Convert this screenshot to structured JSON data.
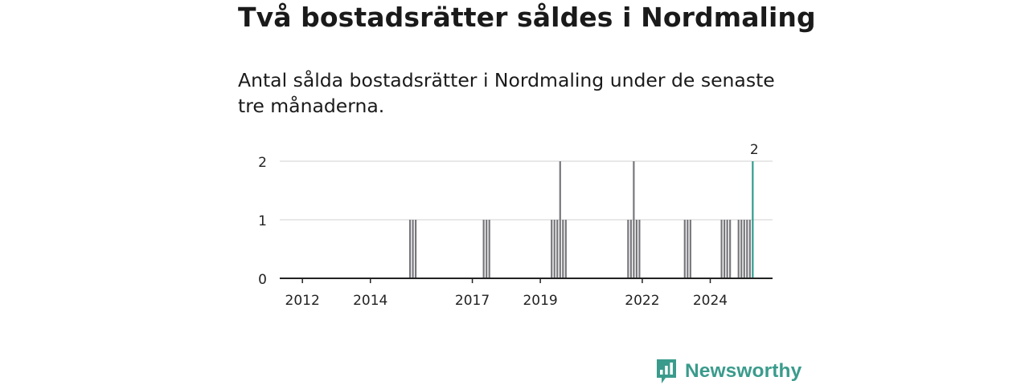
{
  "title": "Två bostadsrätter såldes i Nordmaling",
  "subtitle": "Antal sålda bostadsrätter i Nordmaling under de senaste tre månaderna.",
  "brand": {
    "name": "Newsworthy",
    "icon": "chart-speech-bubble-icon",
    "color": "#3a9b8c"
  },
  "chart_data": {
    "type": "bar",
    "title": "Två bostadsrätter såldes i Nordmaling",
    "subtitle": "Antal sålda bostadsrätter i Nordmaling under de senaste tre månaderna.",
    "xlabel": "",
    "ylabel": "",
    "x_axis": {
      "type": "date",
      "range": [
        "2011-05",
        "2025-11"
      ],
      "tick_labels": [
        "2012",
        "2014",
        "2017",
        "2019",
        "2022",
        "2024"
      ],
      "tick_years": [
        2012,
        2014,
        2017,
        2019,
        2022,
        2024
      ]
    },
    "ylim": [
      0,
      2
    ],
    "yticks": [
      0,
      1,
      2
    ],
    "grid": true,
    "legend": "none",
    "colors": {
      "bar": "#77767b",
      "highlight": "#2e9c8e",
      "axis": "#222222",
      "grid": "#d9d9d9"
    },
    "series": [
      {
        "x": [
          "2015-03",
          "2015-04",
          "2015-05",
          "2017-05",
          "2017-06",
          "2017-07",
          "2019-05",
          "2019-06",
          "2019-07",
          "2019-08",
          "2019-09",
          "2019-10",
          "2021-08",
          "2021-09",
          "2021-10",
          "2021-11",
          "2021-12",
          "2023-04",
          "2023-05",
          "2023-06",
          "2024-05",
          "2024-06",
          "2024-07",
          "2024-08",
          "2024-11",
          "2024-12",
          "2025-01",
          "2025-02",
          "2025-03",
          "2025-04"
        ],
        "values": [
          1,
          1,
          1,
          1,
          1,
          1,
          1,
          1,
          1,
          2,
          1,
          1,
          1,
          1,
          2,
          1,
          1,
          1,
          1,
          1,
          1,
          1,
          1,
          1,
          1,
          1,
          1,
          1,
          1,
          2
        ]
      }
    ],
    "annotations": [
      {
        "x": "2025-04",
        "label": "2"
      }
    ]
  }
}
